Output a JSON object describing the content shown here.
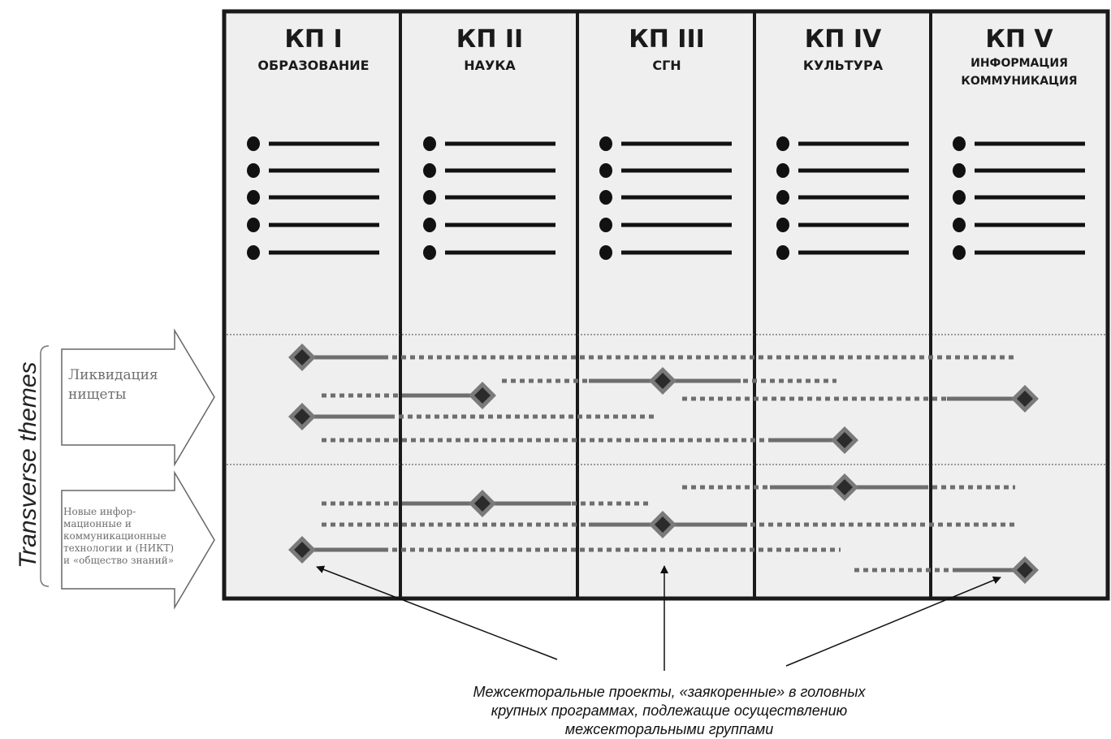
{
  "columns": [
    {
      "title": "КП I",
      "subtitle_lines": [
        "ОБРАЗОВАНИЕ"
      ]
    },
    {
      "title": "КП II",
      "subtitle_lines": [
        "НАУКА"
      ]
    },
    {
      "title": "КП III",
      "subtitle_lines": [
        "СГН"
      ]
    },
    {
      "title": "КП IV",
      "subtitle_lines": [
        "КУЛЬТУРА"
      ]
    },
    {
      "title": "КП V",
      "subtitle_lines": [
        "ИНФОРМАЦИЯ",
        "КОММУНИКАЦИЯ"
      ]
    }
  ],
  "side_label": "Transverse themes",
  "themes": [
    {
      "lines": [
        "Ликвидация",
        "нищеты"
      ]
    },
    {
      "lines": [
        "Новые инфор-",
        "мационные и",
        "коммуникационные",
        "технологии и (НИКТ)",
        "и «общество знаний»"
      ]
    }
  ],
  "caption_lines": [
    "Межсекторальные проекты, «заякоренные» в головных",
    "крупных программах, подлежащие осуществлению",
    "межсекторальными группами"
  ],
  "colors": {
    "frame": "#1a1a1a",
    "panel_fill": "#efefef",
    "project_line": "#6e6e6e",
    "diamond_outer": "#7a7a7a",
    "diamond_inner": "#2b2b2b"
  }
}
